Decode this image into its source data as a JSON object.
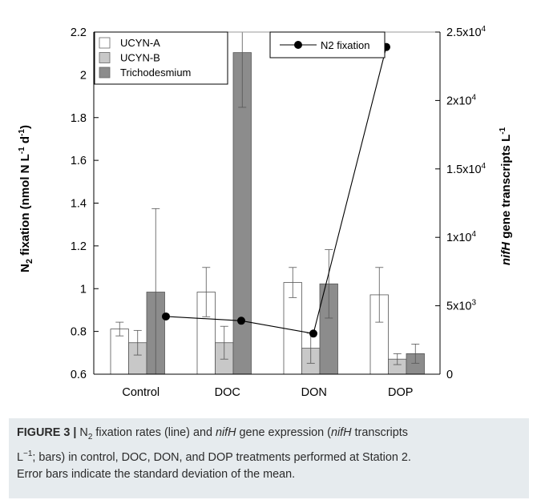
{
  "chart_data": {
    "type": "bar",
    "categories": [
      "Control",
      "DOC",
      "DON",
      "DOP"
    ],
    "bar_series": [
      {
        "name": "UCYN-A",
        "color": "#ffffff",
        "values": [
          3300,
          6000,
          6700,
          5800
        ],
        "errors": [
          500,
          1800,
          1100,
          2000
        ]
      },
      {
        "name": "UCYN-B",
        "color": "#c8c8c8",
        "values": [
          2300,
          2300,
          1900,
          1100
        ],
        "errors": [
          900,
          1200,
          1100,
          400
        ]
      },
      {
        "name": "Trichodesmium",
        "color": "#8c8c8c",
        "values": [
          6000,
          23500,
          6600,
          1500
        ],
        "errors": [
          6100,
          4000,
          2500,
          700
        ]
      }
    ],
    "line_series": {
      "name": "N2 fixation",
      "color": "#000000",
      "values": [
        0.87,
        0.85,
        0.79,
        2.13
      ]
    },
    "left_axis": {
      "title_main": "N",
      "title_sub": "2",
      "title_rest": " fixation (nmol N L",
      "sup1": "-1",
      "mid": " d",
      "sup2": "-1",
      "close": ")",
      "ylim": [
        0.6,
        2.2
      ],
      "ticks": [
        "0.6",
        "0.8",
        "1",
        "1.2",
        "1.4",
        "1.6",
        "1.8",
        "2",
        "2.2"
      ]
    },
    "right_axis": {
      "title_italic": "nifH",
      "title_rest": " gene transcripts L",
      "title_sup": "-1",
      "ylim": [
        0,
        25000
      ],
      "ticks": [
        {
          "value": 0,
          "mant": "0",
          "exp": ""
        },
        {
          "value": 5000,
          "mant": "5x10",
          "exp": "3"
        },
        {
          "value": 10000,
          "mant": "1x10",
          "exp": "4"
        },
        {
          "value": 15000,
          "mant": "1.5x10",
          "exp": "4"
        },
        {
          "value": 20000,
          "mant": "2x10",
          "exp": "4"
        },
        {
          "value": 25000,
          "mant": "2.5x10",
          "exp": "4"
        }
      ]
    },
    "grid": false,
    "legend_placement": "top-left (bars), top-center (line)"
  },
  "caption": {
    "label": "FIGURE 3 |",
    "t1": " N",
    "sub": "2",
    "t2": " fixation rates (line) and ",
    "i1": "nifH",
    "t3": " gene expression (",
    "i2": "nifH",
    "t4": " transcripts",
    "t5": "L",
    "sup": "−1",
    "t6": "; bars) in control, DOC, DON, and DOP treatments performed at Station 2.",
    "t7": "Error bars indicate the standard deviation of the mean."
  }
}
